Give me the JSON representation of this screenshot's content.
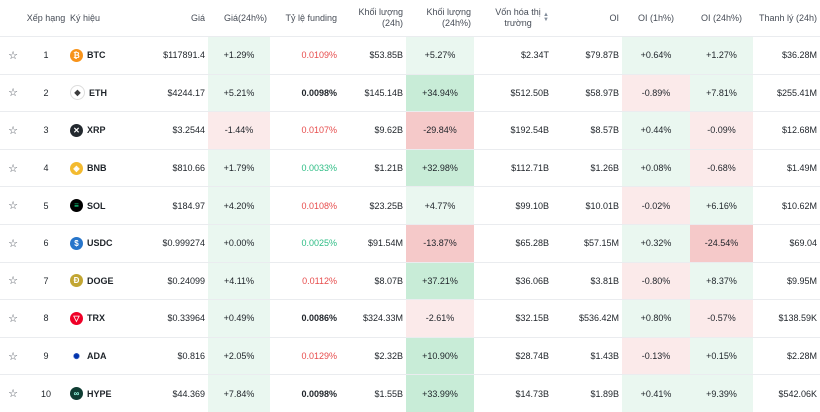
{
  "headers": {
    "rank": "Xếp hạng",
    "symbol": "Ký hiệu",
    "price": "Giá",
    "change": "Giá(24h%)",
    "funding": "Tỷ lệ funding",
    "volume": "Khối lượng (24h)",
    "volume_pct": "Khối lượng (24h%)",
    "mcap": "Vốn hóa thị trường",
    "oi": "OI",
    "oi_1h": "OI (1h%)",
    "oi_24h": "OI (24h%)",
    "liq": "Thanh lý (24h)"
  },
  "rows": [
    {
      "rank": "1",
      "symbol": "BTC",
      "icon": "btc-icon",
      "price": "$117891.4",
      "change": "+1.29%",
      "funding": "0.0109%",
      "volume": "$53.85B",
      "volume_pct": "+5.27%",
      "mcap": "$2.34T",
      "oi": "$79.87B",
      "oi_1h": "+0.64%",
      "oi_24h": "+1.27%",
      "liq": "$36.28M"
    },
    {
      "rank": "2",
      "symbol": "ETH",
      "icon": "eth-icon",
      "price": "$4244.17",
      "change": "+5.21%",
      "funding": "0.0098%",
      "volume": "$145.14B",
      "volume_pct": "+34.94%",
      "mcap": "$512.50B",
      "oi": "$58.97B",
      "oi_1h": "-0.89%",
      "oi_24h": "+7.81%",
      "liq": "$255.41M"
    },
    {
      "rank": "3",
      "symbol": "XRP",
      "icon": "xrp-icon",
      "price": "$3.2544",
      "change": "-1.44%",
      "funding": "0.0107%",
      "volume": "$9.62B",
      "volume_pct": "-29.84%",
      "mcap": "$192.54B",
      "oi": "$8.57B",
      "oi_1h": "+0.44%",
      "oi_24h": "-0.09%",
      "liq": "$12.68M"
    },
    {
      "rank": "4",
      "symbol": "BNB",
      "icon": "bnb-icon",
      "price": "$810.66",
      "change": "+1.79%",
      "funding": "0.0033%",
      "volume": "$1.21B",
      "volume_pct": "+32.98%",
      "mcap": "$112.71B",
      "oi": "$1.26B",
      "oi_1h": "+0.08%",
      "oi_24h": "-0.68%",
      "liq": "$1.49M"
    },
    {
      "rank": "5",
      "symbol": "SOL",
      "icon": "sol-icon",
      "price": "$184.97",
      "change": "+4.20%",
      "funding": "0.0108%",
      "volume": "$23.25B",
      "volume_pct": "+4.77%",
      "mcap": "$99.10B",
      "oi": "$10.01B",
      "oi_1h": "-0.02%",
      "oi_24h": "+6.16%",
      "liq": "$10.62M"
    },
    {
      "rank": "6",
      "symbol": "USDC",
      "icon": "usdc-icon",
      "price": "$0.999274",
      "change": "+0.00%",
      "funding": "0.0025%",
      "volume": "$91.54M",
      "volume_pct": "-13.87%",
      "mcap": "$65.28B",
      "oi": "$57.15M",
      "oi_1h": "+0.32%",
      "oi_24h": "-24.54%",
      "liq": "$69.04"
    },
    {
      "rank": "7",
      "symbol": "DOGE",
      "icon": "doge-icon",
      "price": "$0.24099",
      "change": "+4.11%",
      "funding": "0.0112%",
      "volume": "$8.07B",
      "volume_pct": "+37.21%",
      "mcap": "$36.06B",
      "oi": "$3.81B",
      "oi_1h": "-0.80%",
      "oi_24h": "+8.37%",
      "liq": "$9.95M"
    },
    {
      "rank": "8",
      "symbol": "TRX",
      "icon": "trx-icon",
      "price": "$0.33964",
      "change": "+0.49%",
      "funding": "0.0086%",
      "volume": "$324.33M",
      "volume_pct": "-2.61%",
      "mcap": "$32.15B",
      "oi": "$536.42M",
      "oi_1h": "+0.80%",
      "oi_24h": "-0.57%",
      "liq": "$138.59K"
    },
    {
      "rank": "9",
      "symbol": "ADA",
      "icon": "ada-icon",
      "price": "$0.816",
      "change": "+2.05%",
      "funding": "0.0129%",
      "volume": "$2.32B",
      "volume_pct": "+10.90%",
      "mcap": "$28.74B",
      "oi": "$1.43B",
      "oi_1h": "-0.13%",
      "oi_24h": "+0.15%",
      "liq": "$2.28M"
    },
    {
      "rank": "10",
      "symbol": "HYPE",
      "icon": "hype-icon",
      "price": "$44.369",
      "change": "+7.84%",
      "funding": "0.0098%",
      "volume": "$1.55B",
      "volume_pct": "+33.99%",
      "mcap": "$14.73B",
      "oi": "$1.89B",
      "oi_1h": "+0.41%",
      "oi_24h": "+9.39%",
      "liq": "$542.06K"
    }
  ],
  "colors": {
    "positive_bg": "#eaf7f0",
    "positive_strong_bg": "#c8ecd7",
    "negative_bg": "#fbeaea",
    "negative_strong_bg": "#f5c9c9",
    "funding_high": "#e74c4c",
    "funding_low": "#2ebd85"
  }
}
